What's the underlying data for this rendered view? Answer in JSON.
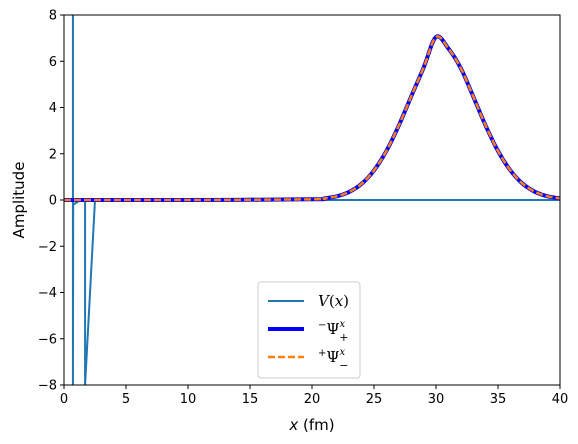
{
  "chart_data": {
    "type": "line",
    "xlabel_var": "x",
    "xlabel_unit": " (fm)",
    "ylabel": "Amplitude",
    "xlim": [
      0,
      40
    ],
    "ylim": [
      -8,
      8
    ],
    "xticks": [
      0,
      5,
      10,
      15,
      20,
      25,
      30,
      35,
      40
    ],
    "yticks": [
      -8,
      -6,
      -4,
      -2,
      0,
      2,
      4,
      6,
      8
    ],
    "xtick_labels": [
      "0",
      "5",
      "10",
      "15",
      "20",
      "25",
      "30",
      "35",
      "40"
    ],
    "ytick_labels": [
      "−8",
      "−6",
      "−4",
      "−2",
      "0",
      "2",
      "4",
      "6",
      "8"
    ],
    "legend_position": "lower center",
    "series": [
      {
        "name": "V(x)",
        "color": "#1f77b4",
        "style": "solid",
        "x": [
          0.72,
          0.72,
          0.74,
          1.2,
          1.6,
          1.7,
          1.7,
          2.5,
          5,
          10,
          20,
          30,
          40
        ],
        "y": [
          8,
          -8,
          -0.2,
          -0.05,
          -0.02,
          -0.02,
          -8,
          0,
          0,
          0,
          0,
          0,
          0
        ]
      },
      {
        "name": "⁻Ψ₊ˣ",
        "color": "#0000ff",
        "style": "solid-thick",
        "x": [
          0,
          10,
          20,
          21,
          22,
          23,
          24,
          25,
          26,
          27,
          28,
          29,
          30,
          31,
          32,
          33,
          34,
          35,
          36,
          37,
          38,
          39,
          40
        ],
        "y": [
          0,
          0,
          0.03,
          0.07,
          0.16,
          0.35,
          0.7,
          1.28,
          2.12,
          3.22,
          4.48,
          5.72,
          7.05,
          6.55,
          5.7,
          4.48,
          3.22,
          2.12,
          1.28,
          0.7,
          0.35,
          0.16,
          0.07
        ]
      },
      {
        "name": "⁺Ψ₋ˣ",
        "color": "#ff7f0e",
        "style": "dashed",
        "x": [
          0,
          10,
          20,
          21,
          22,
          23,
          24,
          25,
          26,
          27,
          28,
          29,
          30,
          31,
          32,
          33,
          34,
          35,
          36,
          37,
          38,
          39,
          40
        ],
        "y": [
          0,
          0,
          0.03,
          0.07,
          0.16,
          0.35,
          0.7,
          1.28,
          2.12,
          3.22,
          4.48,
          5.72,
          7.05,
          6.55,
          5.7,
          4.48,
          3.22,
          2.12,
          1.28,
          0.7,
          0.35,
          0.16,
          0.07
        ]
      }
    ]
  }
}
